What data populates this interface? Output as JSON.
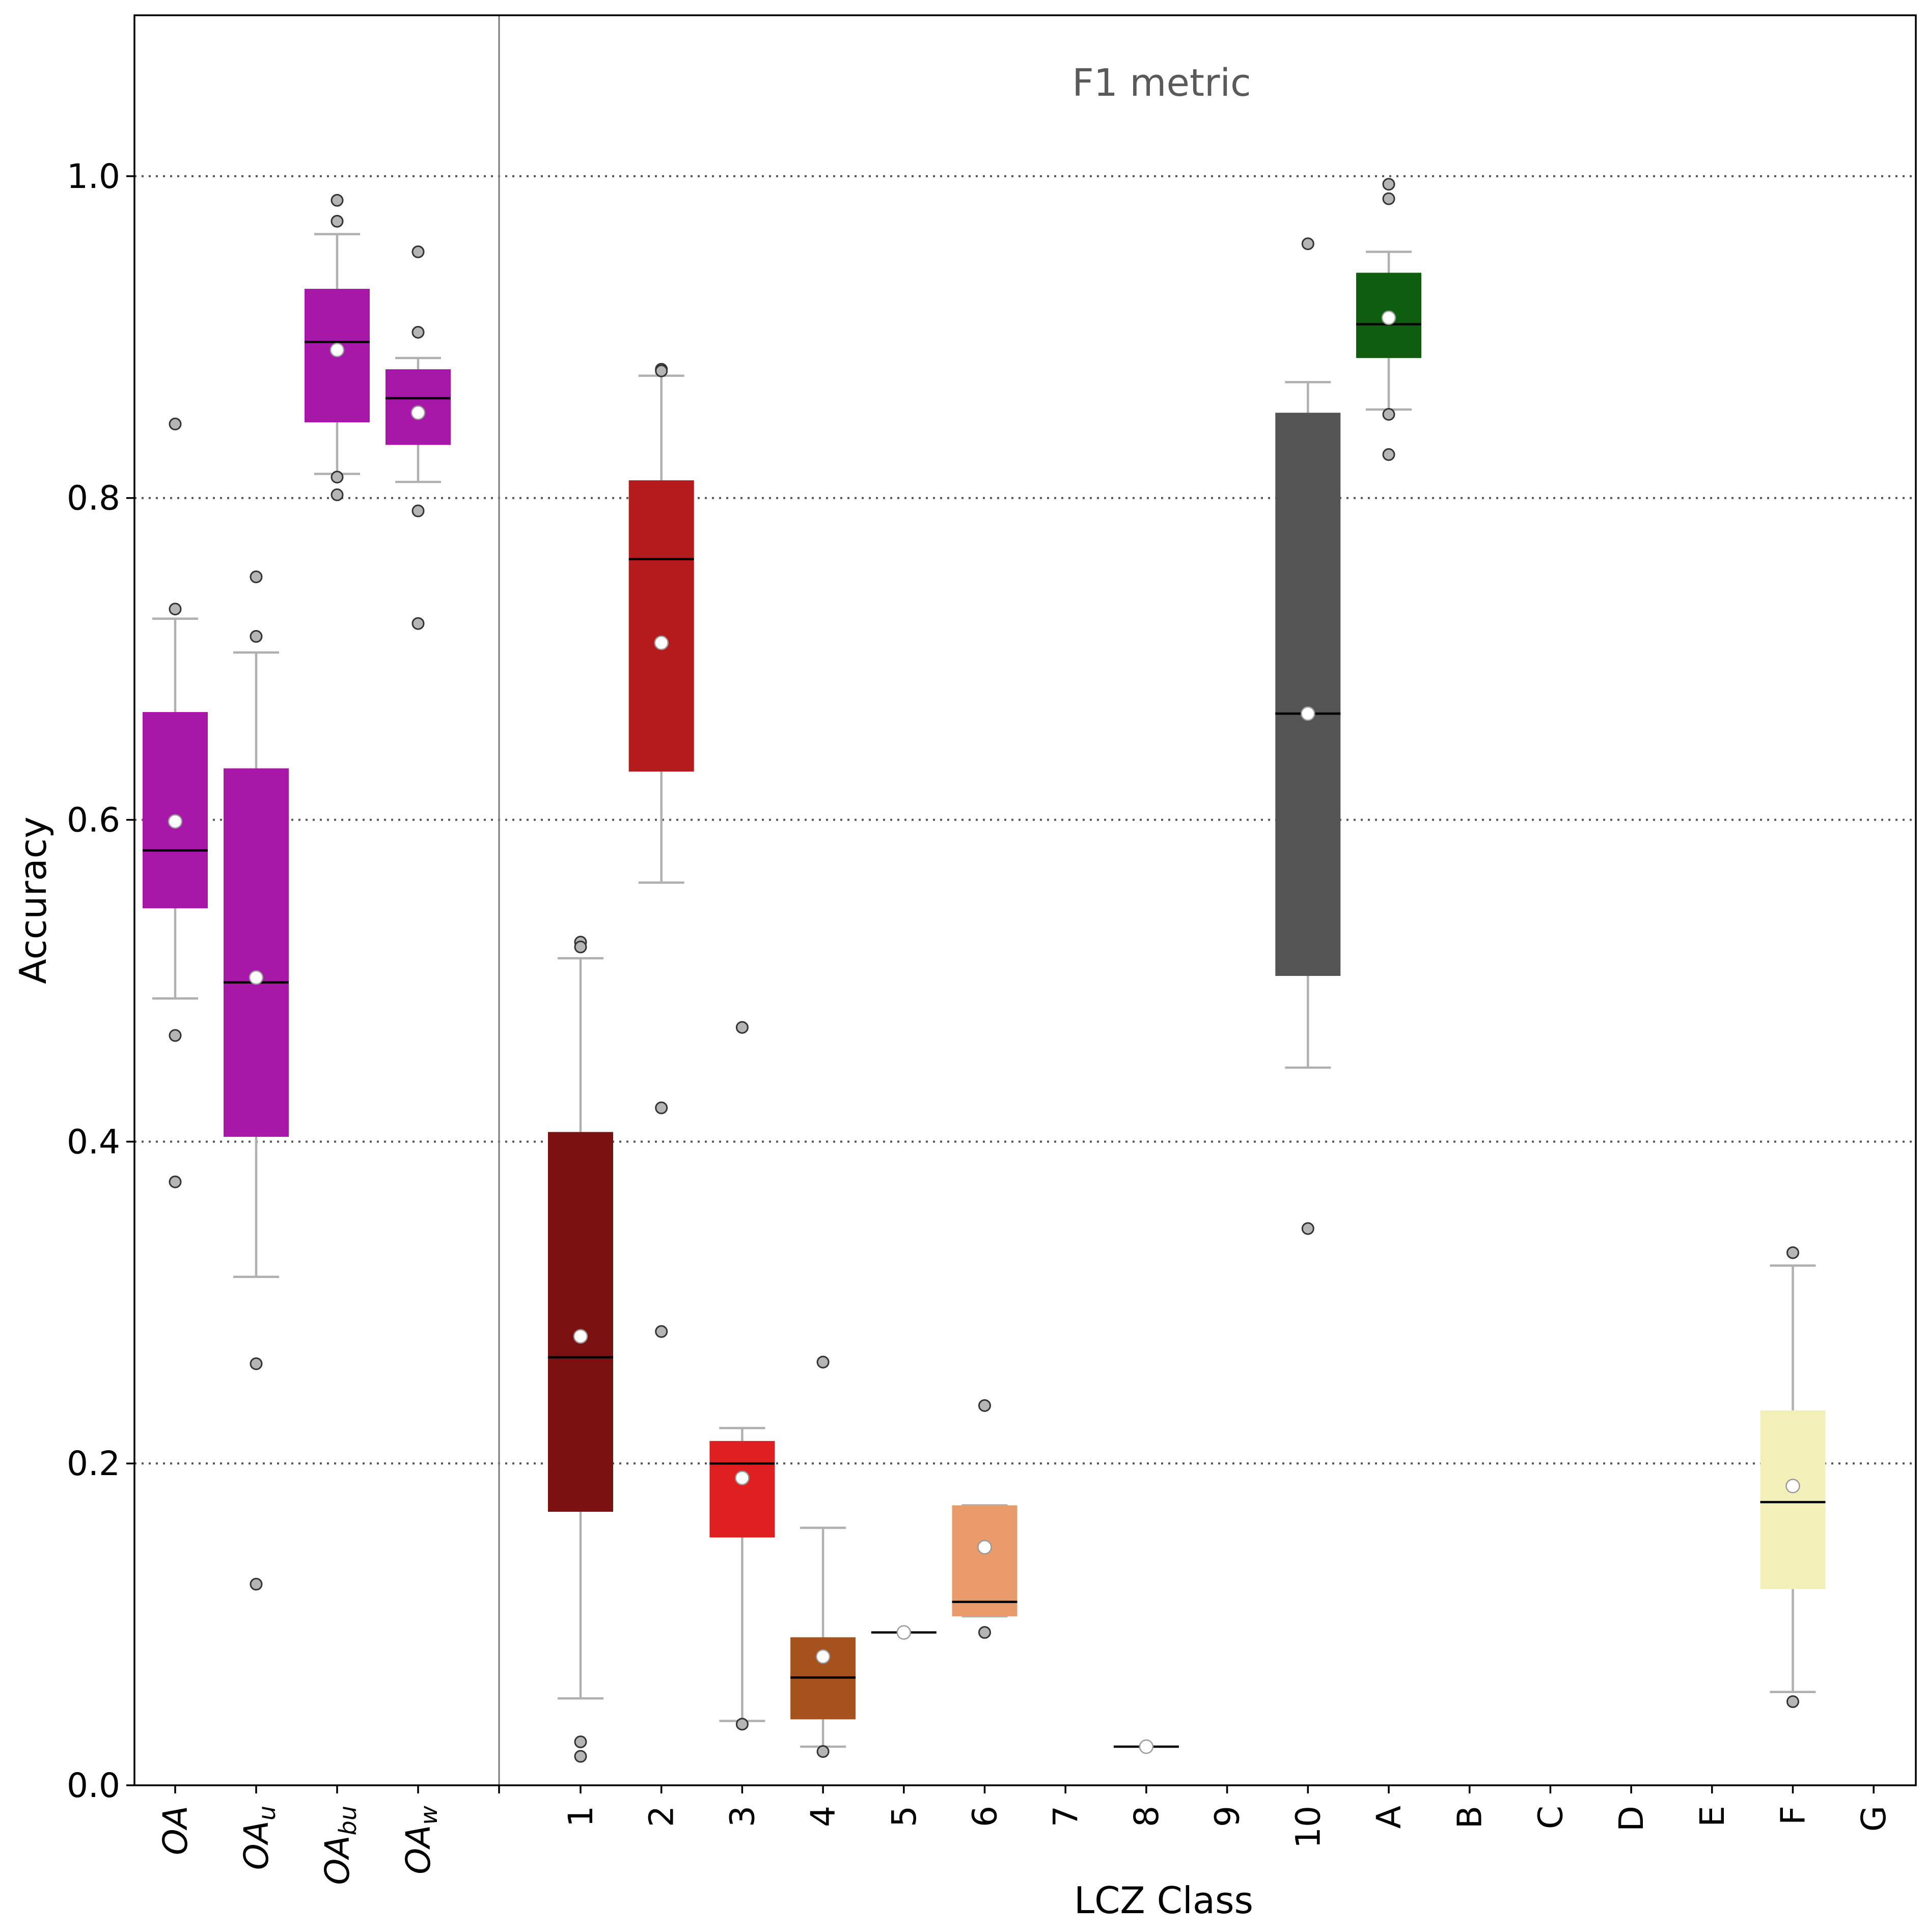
{
  "chart_data": {
    "type": "box",
    "title": "",
    "annotation": "F1 metric",
    "xlabel": "LCZ Class",
    "ylabel": "Accuracy",
    "ylim": [
      0,
      1.1
    ],
    "yticks": [
      "0.0",
      "0.2",
      "0.4",
      "0.6",
      "0.8",
      "1.0"
    ],
    "ytick_values": [
      0,
      0.2,
      0.4,
      0.6,
      0.8,
      1.0
    ],
    "grid": "horizontal dotted",
    "left_groups": [
      {
        "label": "OA",
        "base": "OA",
        "sub": "",
        "color": "#a818a8",
        "q1": 0.545,
        "median": 0.581,
        "q3": 0.667,
        "mean": 0.599,
        "whisker_low": 0.489,
        "whisker_high": 0.725,
        "outliers": [
          0.846,
          0.731,
          0.466,
          0.375
        ]
      },
      {
        "label": "OAu",
        "base": "OA",
        "sub": "u",
        "color": "#a818a8",
        "q1": 0.403,
        "median": 0.499,
        "q3": 0.632,
        "mean": 0.502,
        "whisker_low": 0.316,
        "whisker_high": 0.704,
        "outliers": [
          0.751,
          0.714,
          0.262,
          0.125
        ]
      },
      {
        "label": "OAbu",
        "base": "OA",
        "sub": "bu",
        "color": "#a818a8",
        "q1": 0.847,
        "median": 0.897,
        "q3": 0.93,
        "mean": 0.892,
        "whisker_low": 0.815,
        "whisker_high": 0.964,
        "outliers": [
          0.985,
          0.972,
          0.813,
          0.802
        ]
      },
      {
        "label": "OAw",
        "base": "OA",
        "sub": "w",
        "color": "#a818a8",
        "q1": 0.833,
        "median": 0.862,
        "q3": 0.88,
        "mean": 0.853,
        "whisker_low": 0.81,
        "whisker_high": 0.887,
        "outliers": [
          0.953,
          0.903,
          0.792,
          0.722
        ]
      }
    ],
    "categories": [
      "1",
      "2",
      "3",
      "4",
      "5",
      "6",
      "7",
      "8",
      "9",
      "10",
      "A",
      "B",
      "C",
      "D",
      "E",
      "F",
      "G"
    ],
    "boxes": [
      {
        "category": "1",
        "color": "#7a1010",
        "q1": 0.17,
        "median": 0.266,
        "q3": 0.406,
        "mean": 0.279,
        "whisker_low": 0.054,
        "whisker_high": 0.514,
        "outliers": [
          0.524,
          0.521,
          0.027,
          0.018
        ]
      },
      {
        "category": "2",
        "color": "#b51a1c",
        "q1": 0.63,
        "median": 0.762,
        "q3": 0.811,
        "mean": 0.71,
        "whisker_low": 0.561,
        "whisker_high": 0.876,
        "outliers": [
          0.88,
          0.879,
          0.421,
          0.282
        ]
      },
      {
        "category": "3",
        "color": "#e01f21",
        "q1": 0.154,
        "median": 0.2,
        "q3": 0.214,
        "mean": 0.191,
        "whisker_low": 0.04,
        "whisker_high": 0.222,
        "outliers": [
          0.471,
          0.038
        ]
      },
      {
        "category": "4",
        "color": "#a6521c",
        "q1": 0.041,
        "median": 0.067,
        "q3": 0.092,
        "mean": 0.08,
        "whisker_low": 0.024,
        "whisker_high": 0.16,
        "outliers": [
          0.263,
          0.021
        ]
      },
      {
        "category": "5",
        "color": "#c46a28",
        "q1": 0.095,
        "median": 0.095,
        "q3": 0.095,
        "mean": 0.095,
        "whisker_low": 0.095,
        "whisker_high": 0.095,
        "outliers": []
      },
      {
        "category": "6",
        "color": "#e99c6a",
        "q1": 0.105,
        "median": 0.114,
        "q3": 0.174,
        "mean": 0.148,
        "whisker_low": 0.105,
        "whisker_high": 0.174,
        "outliers": [
          0.236,
          0.095
        ]
      },
      {
        "category": "8",
        "color": "#b8b8b8",
        "q1": 0.024,
        "median": 0.024,
        "q3": 0.024,
        "mean": 0.024,
        "whisker_low": 0.024,
        "whisker_high": 0.024,
        "outliers": []
      },
      {
        "category": "10",
        "color": "#545454",
        "q1": 0.503,
        "median": 0.666,
        "q3": 0.853,
        "mean": 0.666,
        "whisker_low": 0.446,
        "whisker_high": 0.872,
        "outliers": [
          0.958,
          0.346
        ]
      },
      {
        "category": "A",
        "color": "#0f5e10",
        "q1": 0.887,
        "median": 0.908,
        "q3": 0.94,
        "mean": 0.912,
        "whisker_low": 0.855,
        "whisker_high": 0.953,
        "outliers": [
          0.995,
          0.986,
          0.852,
          0.827
        ]
      },
      {
        "category": "F",
        "color": "#f2f0b8",
        "q1": 0.122,
        "median": 0.176,
        "q3": 0.233,
        "mean": 0.186,
        "whisker_low": 0.058,
        "whisker_high": 0.323,
        "outliers": [
          0.331,
          0.052
        ]
      }
    ]
  }
}
